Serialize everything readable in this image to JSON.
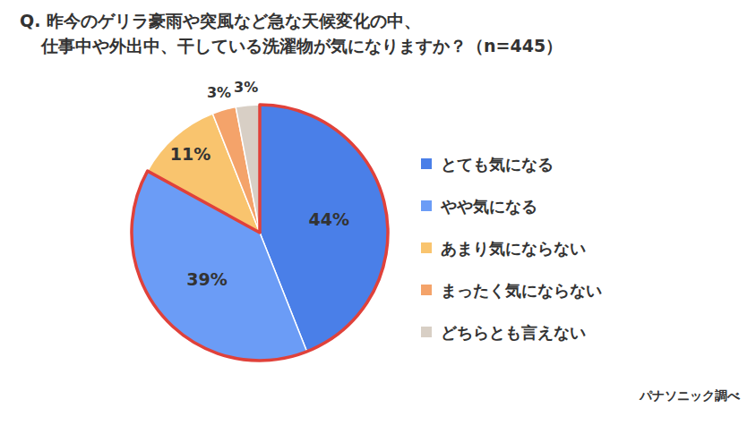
{
  "chart_data": {
    "type": "pie",
    "title": "Q. 昨今のゲリラ豪雨や突風など急な天候変化の中、\n仕事中や外出中、干している洗濯物が気になりますか？（n=445）",
    "categories": [
      "とても気になる",
      "やや気になる",
      "あまり気にならない",
      "まったく気にならない",
      "どちらとも言えない"
    ],
    "values": [
      44,
      39,
      11,
      3,
      3
    ],
    "value_labels": [
      "44%",
      "39%",
      "11%",
      "3%",
      "3%"
    ],
    "colors": [
      "#4a7fe8",
      "#6b9cf6",
      "#f9c46e",
      "#f4a36a",
      "#d8cfc5"
    ],
    "data_labels": true,
    "legend": "right",
    "annotations": [
      "パナソニック調べ"
    ]
  }
}
